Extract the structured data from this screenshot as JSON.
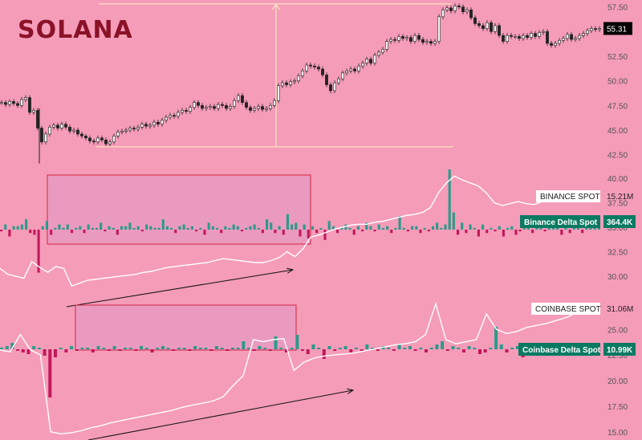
{
  "header": {
    "title": "SOLANA"
  },
  "colors": {
    "background": "#f59cb9",
    "up": "#2b9a8a",
    "down": "#c2185b",
    "line": "#ffffff",
    "box_border": "#d0263f",
    "box_fill": "#e49ac3",
    "title": "#8a1228",
    "price_badge": "#000000",
    "delta_badge": "#0b7a62"
  },
  "labels": {
    "last_price": "55.31",
    "binance_spot_name": "BINANCE SPOT",
    "binance_spot_value": "15.21M",
    "binance_delta_name": "Binance Delta Spot",
    "binance_delta_value": "364.4K",
    "coinbase_spot_name": "COINBASE SPOT",
    "coinbase_spot_value": "31.06M",
    "coinbase_delta_name": "Coinbase Delta Spot",
    "coinbase_delta_value": "10.99K"
  },
  "chart_data": [
    {
      "type": "line",
      "name": "price",
      "yticks": [
        "57.50",
        "55.00",
        "52.50",
        "50.00",
        "47.50",
        "45.00",
        "42.50"
      ],
      "ylim": [
        41.5,
        58.2
      ],
      "x": [
        0,
        5,
        10,
        15,
        20,
        25,
        30,
        35,
        40,
        45,
        50,
        55,
        60,
        65,
        70,
        75,
        80,
        85,
        90,
        95,
        100,
        105,
        110,
        115,
        120,
        125,
        130,
        135,
        140,
        145,
        150,
        155,
        160,
        165,
        170,
        175,
        180,
        185,
        190,
        195,
        200,
        205,
        210,
        215,
        220,
        225,
        230,
        235,
        240,
        245,
        250,
        255,
        260,
        265,
        270,
        275,
        280,
        285,
        290,
        295,
        300,
        305,
        310,
        315,
        320,
        325,
        330,
        335,
        340,
        345,
        350,
        355,
        360,
        365,
        370,
        375,
        380,
        385,
        390,
        395,
        400,
        405,
        410,
        415,
        420,
        425,
        430,
        435,
        440,
        445,
        450,
        455,
        460,
        465,
        470,
        475,
        480,
        485,
        490,
        495,
        500,
        505,
        510,
        515,
        520,
        525,
        530,
        535,
        540,
        545,
        550,
        555,
        560,
        565,
        570,
        575,
        580,
        585,
        590,
        595,
        600,
        605,
        610,
        615,
        620,
        625,
        630,
        635,
        640,
        645,
        650,
        655,
        660,
        665,
        670,
        675,
        680,
        685,
        690,
        695,
        700,
        705,
        710,
        715,
        720,
        725,
        730,
        735,
        740,
        745
      ],
      "close": [
        47.8,
        47.6,
        47.9,
        47.7,
        47.5,
        48.1,
        48.3,
        46.8,
        47.0,
        45.2,
        43.8,
        44.6,
        45.3,
        45.5,
        45.2,
        45.6,
        45.3,
        44.9,
        45.0,
        44.6,
        44.4,
        44.2,
        43.9,
        43.8,
        44.2,
        44.0,
        43.6,
        43.8,
        44.4,
        44.8,
        44.9,
        45.0,
        45.2,
        45.1,
        45.3,
        45.6,
        45.4,
        45.5,
        45.8,
        45.6,
        46.0,
        46.3,
        46.5,
        46.4,
        46.8,
        47.0,
        46.9,
        47.3,
        47.8,
        47.5,
        47.2,
        47.3,
        47.4,
        47.2,
        47.6,
        47.5,
        47.2,
        47.4,
        48.0,
        48.5,
        47.8,
        47.3,
        47.0,
        47.2,
        47.4,
        47.1,
        47.2,
        47.5,
        48.0,
        49.5,
        49.8,
        49.6,
        49.9,
        50.0,
        50.5,
        51.0,
        51.6,
        51.5,
        51.4,
        51.2,
        50.6,
        49.6,
        49.0,
        49.8,
        50.2,
        50.8,
        51.0,
        51.2,
        51.0,
        51.5,
        51.8,
        52.2,
        51.8,
        52.6,
        52.9,
        53.2,
        54.0,
        54.2,
        54.1,
        54.5,
        54.3,
        54.4,
        54.0,
        54.6,
        54.2,
        53.9,
        54.0,
        53.8,
        54.0,
        56.5,
        57.2,
        57.4,
        57.1,
        57.6,
        57.5,
        57.0,
        57.2,
        56.4,
        55.8,
        55.6,
        55.3,
        55.9,
        55.0,
        55.6,
        54.6,
        54.0,
        54.6,
        54.5,
        54.5,
        54.3,
        54.6,
        54.4,
        54.8,
        54.5,
        54.9,
        55.0,
        53.8,
        53.6,
        53.8,
        54.1,
        54.3,
        54.7,
        54.2,
        54.3,
        54.6,
        54.8,
        55.1,
        55.3,
        55.2,
        55.31
      ]
    },
    {
      "type": "bar",
      "name": "Binance Delta Spot",
      "yticks": [
        "40.00",
        "37.50",
        "35.00",
        "32.50",
        "30.00"
      ],
      "ylim": [
        28.7,
        40.8
      ],
      "deltas": [
        -1,
        3,
        -4,
        2,
        2,
        3,
        6,
        -2,
        -3,
        -25,
        2,
        5,
        -3,
        1,
        3,
        1,
        3,
        -2,
        1,
        2,
        -2,
        3,
        1,
        1,
        4,
        -1,
        2,
        1,
        -3,
        2,
        2,
        4,
        1,
        2,
        -1,
        3,
        2,
        1,
        1,
        6,
        2,
        1,
        -2,
        2,
        3,
        1,
        2,
        -1,
        1,
        -3,
        4,
        2,
        1,
        -2,
        2,
        1,
        3,
        2,
        -1,
        1,
        2,
        3,
        1,
        -2,
        6,
        4,
        -2,
        2,
        -3,
        9,
        3,
        4,
        -4,
        3,
        -5,
        2,
        -2,
        1,
        -6,
        5,
        2,
        -2,
        1,
        3,
        1,
        -3,
        2,
        -1,
        4,
        2,
        -1,
        3,
        1,
        2,
        -2,
        1,
        8,
        1,
        -1,
        2,
        2,
        -2,
        1,
        -1,
        2,
        4,
        1,
        3,
        35,
        10,
        -3,
        4,
        -2,
        3,
        1,
        -4,
        3,
        -2,
        1,
        -1,
        2,
        -4,
        1,
        2,
        -3,
        -1,
        4,
        1,
        -2,
        1,
        2,
        -1,
        1,
        3,
        2,
        -3,
        1,
        -2,
        1,
        1,
        -2,
        2,
        1,
        3,
        1
      ],
      "spot_line": [
        30.8,
        30.2,
        30.0,
        29.8,
        31.5,
        30.9,
        30.4,
        31.0,
        30.8,
        29.0,
        29.3,
        29.6,
        29.7,
        29.8,
        29.9,
        30.0,
        30.1,
        30.2,
        30.4,
        30.5,
        30.7,
        30.9,
        31.0,
        31.1,
        31.2,
        31.3,
        31.4,
        31.6,
        31.8,
        31.7,
        31.6,
        31.5,
        31.4,
        31.4,
        31.6,
        31.9,
        32.5,
        32.0,
        32.8,
        34.0,
        34.2,
        34.5,
        34.8,
        35.0,
        35.2,
        35.3,
        35.3,
        35.5,
        35.6,
        35.8,
        36.0,
        36.2,
        36.3,
        36.5,
        37.0,
        38.5,
        39.5,
        40.2,
        39.8,
        39.5,
        39.2,
        38.5,
        37.5,
        37.2,
        37.4,
        37.6,
        37.4,
        37.3,
        37.6,
        38.0,
        38.2,
        38.5,
        38.2,
        38.0,
        37.8,
        37.9
      ]
    },
    {
      "type": "bar",
      "name": "Coinbase Delta Spot",
      "yticks": [
        "25.00",
        "22.50",
        "20.00",
        "17.50",
        "15.00"
      ],
      "ylim": [
        14.2,
        28.0
      ],
      "deltas": [
        1,
        2,
        4,
        -1,
        -2,
        -3,
        2,
        1,
        -4,
        -30,
        -5,
        1,
        -2,
        2,
        -1,
        1,
        1,
        -2,
        2,
        1,
        -1,
        2,
        -1,
        1,
        1,
        -1,
        2,
        1,
        -2,
        1,
        2,
        1,
        -1,
        1,
        1,
        -1,
        2,
        1,
        1,
        -1,
        2,
        1,
        -1,
        1,
        1,
        5,
        1,
        -1,
        2,
        1,
        -1,
        8,
        1,
        -2,
        1,
        9,
        -1,
        -3,
        3,
        1,
        -6,
        2,
        -1,
        1,
        2,
        -2,
        1,
        -1,
        3,
        1,
        -1,
        2,
        1,
        -1,
        3,
        1,
        2,
        -1,
        1,
        -2,
        1,
        3,
        5,
        -1,
        2,
        1,
        -2,
        2,
        1,
        -3,
        -2,
        1,
        14,
        3,
        -2,
        1,
        2,
        -5,
        1,
        -2,
        1,
        -1,
        2,
        -1,
        1,
        2,
        -1,
        1,
        2,
        -1,
        1,
        2
      ],
      "spot_line": [
        23.0,
        22.8,
        24.5,
        23.0,
        22.5,
        15.0,
        14.8,
        14.9,
        15.1,
        15.4,
        15.6,
        15.9,
        16.1,
        16.3,
        16.5,
        16.7,
        16.9,
        17.1,
        17.4,
        17.6,
        17.8,
        18.0,
        18.4,
        19.5,
        20.5,
        24.0,
        23.8,
        24.0,
        24.1,
        21.0,
        21.8,
        22.2,
        22.4,
        22.5,
        22.6,
        22.7,
        22.9,
        23.1,
        23.3,
        23.5,
        23.6,
        23.8,
        24.5,
        27.5,
        24.0,
        23.6,
        23.8,
        24.0,
        26.5,
        25.0,
        24.6,
        24.8,
        25.2,
        25.4,
        25.6,
        25.9,
        26.2,
        26.7,
        27.0,
        27.3
      ]
    }
  ]
}
